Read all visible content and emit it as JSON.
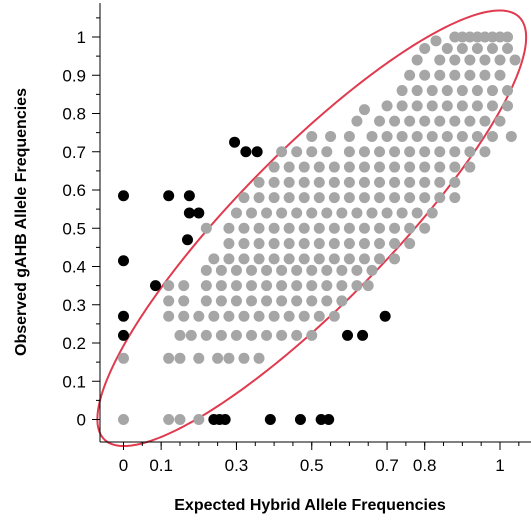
{
  "chart_data": {
    "type": "scatter",
    "title": "",
    "xlabel": "Expected Hybrid Allele Frequencies",
    "ylabel": "Observed gAHB Allele Frequencies",
    "xlim": [
      -0.06,
      1.06
    ],
    "ylim": [
      -0.06,
      1.06
    ],
    "xticks": [
      0,
      0.1,
      0.3,
      0.5,
      0.7,
      0.8,
      1
    ],
    "xtick_labels": [
      "0",
      "0.1",
      "0.3",
      "0.5",
      "0.7",
      "0.8",
      "1"
    ],
    "yticks": [
      0,
      0.1,
      0.2,
      0.3,
      0.4,
      0.5,
      0.6,
      0.7,
      0.8,
      0.9,
      1
    ],
    "ytick_labels": [
      "0",
      "0.1",
      "0.2",
      "0.3",
      "0.4",
      "0.5",
      "0.6",
      "0.7",
      "0.8",
      "0.9",
      "1"
    ],
    "grid": false,
    "ellipse": {
      "center": [
        0.5,
        0.5
      ],
      "angle_deg": 45,
      "semi_major": 0.78,
      "semi_minor": 0.2,
      "color": "#e03a4e"
    },
    "series": [
      {
        "color": "#a6a6a6",
        "points": [
          [
            0,
            0
          ],
          [
            0,
            0.16
          ],
          [
            0.12,
            0
          ],
          [
            0.15,
            0
          ],
          [
            0.2,
            0
          ],
          [
            0.12,
            0.16
          ],
          [
            0.15,
            0.16
          ],
          [
            0.2,
            0.16
          ],
          [
            0.25,
            0.16
          ],
          [
            0.28,
            0.16
          ],
          [
            0.32,
            0.16
          ],
          [
            0.36,
            0.16
          ],
          [
            0.15,
            0.22
          ],
          [
            0.18,
            0.22
          ],
          [
            0.22,
            0.22
          ],
          [
            0.26,
            0.22
          ],
          [
            0.3,
            0.22
          ],
          [
            0.34,
            0.22
          ],
          [
            0.38,
            0.22
          ],
          [
            0.42,
            0.22
          ],
          [
            0.46,
            0.22
          ],
          [
            0.5,
            0.22
          ],
          [
            0.12,
            0.27
          ],
          [
            0.16,
            0.27
          ],
          [
            0.2,
            0.27
          ],
          [
            0.24,
            0.27
          ],
          [
            0.28,
            0.27
          ],
          [
            0.32,
            0.27
          ],
          [
            0.36,
            0.27
          ],
          [
            0.4,
            0.27
          ],
          [
            0.44,
            0.27
          ],
          [
            0.48,
            0.27
          ],
          [
            0.52,
            0.27
          ],
          [
            0.56,
            0.27
          ],
          [
            0.12,
            0.31
          ],
          [
            0.16,
            0.31
          ],
          [
            0.22,
            0.31
          ],
          [
            0.26,
            0.31
          ],
          [
            0.3,
            0.31
          ],
          [
            0.34,
            0.31
          ],
          [
            0.38,
            0.31
          ],
          [
            0.42,
            0.31
          ],
          [
            0.46,
            0.31
          ],
          [
            0.5,
            0.31
          ],
          [
            0.54,
            0.31
          ],
          [
            0.58,
            0.31
          ],
          [
            0.12,
            0.35
          ],
          [
            0.16,
            0.35
          ],
          [
            0.22,
            0.35
          ],
          [
            0.26,
            0.35
          ],
          [
            0.3,
            0.35
          ],
          [
            0.34,
            0.35
          ],
          [
            0.38,
            0.35
          ],
          [
            0.42,
            0.35
          ],
          [
            0.46,
            0.35
          ],
          [
            0.5,
            0.35
          ],
          [
            0.54,
            0.35
          ],
          [
            0.58,
            0.35
          ],
          [
            0.62,
            0.35
          ],
          [
            0.65,
            0.35
          ],
          [
            0.22,
            0.39
          ],
          [
            0.26,
            0.39
          ],
          [
            0.3,
            0.39
          ],
          [
            0.34,
            0.39
          ],
          [
            0.38,
            0.39
          ],
          [
            0.42,
            0.39
          ],
          [
            0.46,
            0.39
          ],
          [
            0.5,
            0.39
          ],
          [
            0.54,
            0.39
          ],
          [
            0.58,
            0.39
          ],
          [
            0.62,
            0.39
          ],
          [
            0.66,
            0.39
          ],
          [
            0.24,
            0.42
          ],
          [
            0.28,
            0.42
          ],
          [
            0.32,
            0.42
          ],
          [
            0.36,
            0.42
          ],
          [
            0.4,
            0.42
          ],
          [
            0.44,
            0.42
          ],
          [
            0.48,
            0.42
          ],
          [
            0.52,
            0.42
          ],
          [
            0.56,
            0.42
          ],
          [
            0.6,
            0.42
          ],
          [
            0.64,
            0.42
          ],
          [
            0.68,
            0.42
          ],
          [
            0.72,
            0.42
          ],
          [
            0.28,
            0.46
          ],
          [
            0.32,
            0.46
          ],
          [
            0.36,
            0.46
          ],
          [
            0.4,
            0.46
          ],
          [
            0.44,
            0.46
          ],
          [
            0.48,
            0.46
          ],
          [
            0.52,
            0.46
          ],
          [
            0.56,
            0.46
          ],
          [
            0.6,
            0.46
          ],
          [
            0.64,
            0.46
          ],
          [
            0.68,
            0.46
          ],
          [
            0.72,
            0.46
          ],
          [
            0.76,
            0.46
          ],
          [
            0.22,
            0.5
          ],
          [
            0.28,
            0.5
          ],
          [
            0.32,
            0.5
          ],
          [
            0.36,
            0.5
          ],
          [
            0.4,
            0.5
          ],
          [
            0.44,
            0.5
          ],
          [
            0.48,
            0.5
          ],
          [
            0.52,
            0.5
          ],
          [
            0.56,
            0.5
          ],
          [
            0.6,
            0.5
          ],
          [
            0.64,
            0.5
          ],
          [
            0.68,
            0.5
          ],
          [
            0.72,
            0.5
          ],
          [
            0.76,
            0.5
          ],
          [
            0.8,
            0.5
          ],
          [
            0.3,
            0.54
          ],
          [
            0.34,
            0.54
          ],
          [
            0.38,
            0.54
          ],
          [
            0.42,
            0.54
          ],
          [
            0.46,
            0.54
          ],
          [
            0.5,
            0.54
          ],
          [
            0.54,
            0.54
          ],
          [
            0.58,
            0.54
          ],
          [
            0.62,
            0.54
          ],
          [
            0.66,
            0.54
          ],
          [
            0.7,
            0.54
          ],
          [
            0.74,
            0.54
          ],
          [
            0.78,
            0.54
          ],
          [
            0.82,
            0.54
          ],
          [
            0.32,
            0.58
          ],
          [
            0.36,
            0.58
          ],
          [
            0.4,
            0.58
          ],
          [
            0.44,
            0.58
          ],
          [
            0.48,
            0.58
          ],
          [
            0.52,
            0.58
          ],
          [
            0.56,
            0.58
          ],
          [
            0.6,
            0.58
          ],
          [
            0.64,
            0.58
          ],
          [
            0.68,
            0.58
          ],
          [
            0.72,
            0.58
          ],
          [
            0.76,
            0.58
          ],
          [
            0.8,
            0.58
          ],
          [
            0.84,
            0.58
          ],
          [
            0.88,
            0.58
          ],
          [
            0.36,
            0.62
          ],
          [
            0.4,
            0.62
          ],
          [
            0.44,
            0.62
          ],
          [
            0.48,
            0.62
          ],
          [
            0.52,
            0.62
          ],
          [
            0.56,
            0.62
          ],
          [
            0.6,
            0.62
          ],
          [
            0.64,
            0.62
          ],
          [
            0.68,
            0.62
          ],
          [
            0.72,
            0.62
          ],
          [
            0.76,
            0.62
          ],
          [
            0.8,
            0.62
          ],
          [
            0.84,
            0.62
          ],
          [
            0.88,
            0.62
          ],
          [
            0.4,
            0.66
          ],
          [
            0.44,
            0.66
          ],
          [
            0.48,
            0.66
          ],
          [
            0.52,
            0.66
          ],
          [
            0.56,
            0.66
          ],
          [
            0.6,
            0.66
          ],
          [
            0.64,
            0.66
          ],
          [
            0.68,
            0.66
          ],
          [
            0.72,
            0.66
          ],
          [
            0.76,
            0.66
          ],
          [
            0.8,
            0.66
          ],
          [
            0.84,
            0.66
          ],
          [
            0.88,
            0.66
          ],
          [
            0.92,
            0.66
          ],
          [
            0.42,
            0.7
          ],
          [
            0.46,
            0.7
          ],
          [
            0.5,
            0.7
          ],
          [
            0.54,
            0.7
          ],
          [
            0.6,
            0.7
          ],
          [
            0.64,
            0.7
          ],
          [
            0.68,
            0.7
          ],
          [
            0.72,
            0.7
          ],
          [
            0.76,
            0.7
          ],
          [
            0.8,
            0.7
          ],
          [
            0.84,
            0.7
          ],
          [
            0.88,
            0.7
          ],
          [
            0.92,
            0.7
          ],
          [
            0.96,
            0.7
          ],
          [
            0.5,
            0.74
          ],
          [
            0.55,
            0.74
          ],
          [
            0.6,
            0.74
          ],
          [
            0.66,
            0.74
          ],
          [
            0.7,
            0.74
          ],
          [
            0.74,
            0.74
          ],
          [
            0.78,
            0.74
          ],
          [
            0.82,
            0.74
          ],
          [
            0.86,
            0.74
          ],
          [
            0.9,
            0.74
          ],
          [
            0.94,
            0.74
          ],
          [
            0.98,
            0.74
          ],
          [
            1.03,
            0.74
          ],
          [
            0.62,
            0.78
          ],
          [
            0.68,
            0.78
          ],
          [
            0.72,
            0.78
          ],
          [
            0.76,
            0.78
          ],
          [
            0.8,
            0.78
          ],
          [
            0.84,
            0.78
          ],
          [
            0.88,
            0.78
          ],
          [
            0.92,
            0.78
          ],
          [
            0.96,
            0.78
          ],
          [
            1.0,
            0.78
          ],
          [
            0.64,
            0.81
          ],
          [
            0.7,
            0.82
          ],
          [
            0.74,
            0.82
          ],
          [
            0.78,
            0.82
          ],
          [
            0.82,
            0.82
          ],
          [
            0.86,
            0.82
          ],
          [
            0.9,
            0.82
          ],
          [
            0.94,
            0.82
          ],
          [
            0.98,
            0.82
          ],
          [
            1.02,
            0.82
          ],
          [
            0.74,
            0.86
          ],
          [
            0.78,
            0.86
          ],
          [
            0.82,
            0.86
          ],
          [
            0.86,
            0.86
          ],
          [
            0.9,
            0.86
          ],
          [
            0.94,
            0.86
          ],
          [
            0.98,
            0.86
          ],
          [
            1.02,
            0.86
          ],
          [
            0.76,
            0.9
          ],
          [
            0.8,
            0.9
          ],
          [
            0.84,
            0.9
          ],
          [
            0.88,
            0.9
          ],
          [
            0.92,
            0.9
          ],
          [
            0.96,
            0.9
          ],
          [
            1.0,
            0.9
          ],
          [
            0.78,
            0.94
          ],
          [
            0.84,
            0.94
          ],
          [
            0.88,
            0.94
          ],
          [
            0.92,
            0.94
          ],
          [
            0.96,
            0.94
          ],
          [
            1.0,
            0.94
          ],
          [
            1.04,
            0.94
          ],
          [
            0.8,
            0.97
          ],
          [
            0.86,
            0.97
          ],
          [
            0.9,
            0.97
          ],
          [
            0.94,
            0.97
          ],
          [
            0.98,
            0.97
          ],
          [
            1.02,
            0.97
          ],
          [
            0.83,
            0.99
          ],
          [
            0.88,
            1.0
          ],
          [
            0.9,
            1.0
          ],
          [
            0.92,
            1.0
          ],
          [
            0.94,
            1.0
          ],
          [
            0.96,
            1.0
          ],
          [
            0.98,
            1.0
          ],
          [
            1.0,
            1.0
          ],
          [
            1.02,
            1.0
          ]
        ]
      },
      {
        "color": "#000000",
        "points": [
          [
            0,
            0.585
          ],
          [
            0,
            0.415
          ],
          [
            0,
            0.27
          ],
          [
            0,
            0.22
          ],
          [
            0.085,
            0.35
          ],
          [
            0.12,
            0.585
          ],
          [
            0.175,
            0.585
          ],
          [
            0.175,
            0.54
          ],
          [
            0.2,
            0.54
          ],
          [
            0.17,
            0.47
          ],
          [
            0.295,
            0.725
          ],
          [
            0.325,
            0.7
          ],
          [
            0.355,
            0.7
          ],
          [
            0.24,
            0
          ],
          [
            0.255,
            0
          ],
          [
            0.27,
            0
          ],
          [
            0.39,
            0
          ],
          [
            0.47,
            0
          ],
          [
            0.525,
            0
          ],
          [
            0.545,
            0
          ],
          [
            0.595,
            0.22
          ],
          [
            0.635,
            0.22
          ],
          [
            0.695,
            0.27
          ]
        ]
      }
    ]
  }
}
